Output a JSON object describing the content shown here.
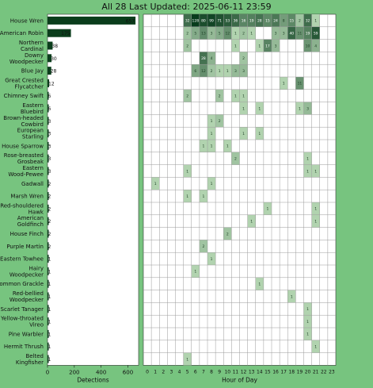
{
  "header": {
    "title": "All 28 Last Updated: 2025-06-11 23:59"
  },
  "chart_data": {
    "type": "heatmap",
    "title": "All 28 Last Updated: 2025-06-11 23:59",
    "bar_xlabel": "Detections",
    "bar_xticks": [
      "0",
      "200",
      "400",
      "600"
    ],
    "bar_xlim": [
      0,
      680
    ],
    "heat_xlabel": "Hour of Day",
    "hours": [
      "0",
      "1",
      "2",
      "3",
      "4",
      "5",
      "6",
      "7",
      "8",
      "9",
      "10",
      "11",
      "12",
      "13",
      "14",
      "15",
      "16",
      "17",
      "18",
      "19",
      "20",
      "21",
      "22",
      "23"
    ],
    "colors": {
      "bg": "#77c47f",
      "dark": "#0b3d1c",
      "mid": "#3a9a53",
      "light": "#c9e9c4"
    },
    "species": [
      {
        "name": "House Wren",
        "total": 657,
        "hours": {
          "5": 32,
          "6": 128,
          "7": 80,
          "8": 99,
          "9": 71,
          "10": 53,
          "11": 36,
          "12": 16,
          "13": 19,
          "14": 28,
          "15": 15,
          "16": 24,
          "17": 8,
          "18": 15,
          "19": 2,
          "20": 32,
          "21": 1
        }
      },
      {
        "name": "American Robin",
        "total": 175,
        "hours": {
          "5": 2,
          "6": 5,
          "7": 13,
          "8": 3,
          "9": 5,
          "10": 12,
          "11": 1,
          "12": 2,
          "13": 1,
          "16": 3,
          "17": 3,
          "18": 40,
          "19": 11,
          "20": 19,
          "21": 59
        }
      },
      {
        "name": "Northern Cardinal",
        "total": 38,
        "hours": {
          "5": 2,
          "11": 1,
          "14": 1,
          "15": 17,
          "16": 3,
          "20": 10,
          "21": 4
        }
      },
      {
        "name": "Downy Woodpecker",
        "total": 30,
        "hours": {
          "7": 28,
          "8": 4,
          "12": 2
        }
      },
      {
        "name": "Blue Jay",
        "total": 28,
        "hours": {
          "6": 6,
          "7": 12,
          "8": 2,
          "9": 1,
          "10": 1,
          "11": 3,
          "12": 3
        }
      },
      {
        "name": "Great Crested Flycatcher",
        "total": 12,
        "hours": {
          "17": 1,
          "19": 11
        }
      },
      {
        "name": "Chimney Swift",
        "total": 6,
        "hours": {
          "5": 2,
          "9": 2,
          "11": 1,
          "12": 1
        }
      },
      {
        "name": "Eastern Bluebird",
        "total": 6,
        "hours": {
          "12": 1,
          "14": 1,
          "19": 1,
          "20": 3
        }
      },
      {
        "name": "Brown-headed Cowbird",
        "total": 3,
        "hours": {
          "8": 1,
          "9": 2
        }
      },
      {
        "name": "European Starling",
        "total": 3,
        "hours": {
          "8": 1,
          "12": 1,
          "14": 1
        }
      },
      {
        "name": "House Sparrow",
        "total": 3,
        "hours": {
          "7": 1,
          "8": 1,
          "10": 1
        }
      },
      {
        "name": "Rose-breasted Grosbeak",
        "total": 3,
        "hours": {
          "11": 2,
          "20": 1
        }
      },
      {
        "name": "Eastern Wood-Pewee",
        "total": 3,
        "hours": {
          "5": 1,
          "20": 1,
          "21": 1
        }
      },
      {
        "name": "Gadwall",
        "total": 2,
        "hours": {
          "1": 1,
          "8": 1
        }
      },
      {
        "name": "Marsh Wren",
        "total": 2,
        "hours": {
          "5": 1,
          "7": 1
        }
      },
      {
        "name": "Red-shouldered Hawk",
        "total": 2,
        "hours": {
          "15": 1,
          "21": 1
        }
      },
      {
        "name": "American Goldfinch",
        "total": 2,
        "hours": {
          "13": 1,
          "21": 1
        }
      },
      {
        "name": "House Finch",
        "total": 2,
        "hours": {
          "10": 2
        }
      },
      {
        "name": "Purple Martin",
        "total": 2,
        "hours": {
          "7": 2
        }
      },
      {
        "name": "Eastern Towhee",
        "total": 1,
        "hours": {
          "8": 1
        }
      },
      {
        "name": "Hairy Woodpecker",
        "total": 1,
        "hours": {
          "6": 1
        }
      },
      {
        "name": "Common Grackle",
        "total": 1,
        "hours": {
          "14": 1
        }
      },
      {
        "name": "Red-bellied Woodpecker",
        "total": 1,
        "hours": {
          "18": 1
        }
      },
      {
        "name": "Scarlet Tanager",
        "total": 1,
        "hours": {
          "20": 1
        }
      },
      {
        "name": "Yellow-throated Vireo",
        "total": 1,
        "hours": {
          "20": 1
        }
      },
      {
        "name": "Pine Warbler",
        "total": 1,
        "hours": {
          "20": 1
        }
      },
      {
        "name": "Hermit Thrush",
        "total": 1,
        "hours": {
          "21": 1
        }
      },
      {
        "name": "Belted Kingfisher",
        "total": 1,
        "hours": {
          "5": 1
        }
      }
    ]
  }
}
